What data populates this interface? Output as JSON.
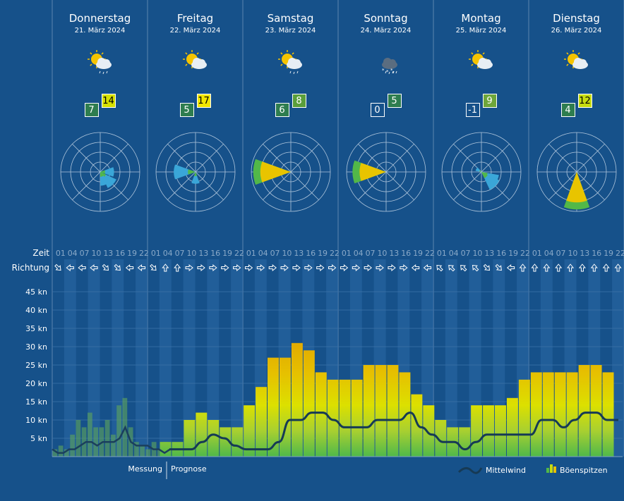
{
  "days": [
    {
      "name": "Donnerstag",
      "date": "21. März 2024",
      "tmin": "7",
      "tmax": "14",
      "icon": "sun-cloud-rain-icon",
      "tmin_color": "#2e7d4f",
      "tmax_color": "#d6e000"
    },
    {
      "name": "Freitag",
      "date": "22. März 2024",
      "tmin": "5",
      "tmax": "17",
      "icon": "sun-cloud-icon",
      "tmin_color": "#2e7d4f",
      "tmax_color": "#f2e600"
    },
    {
      "name": "Samstag",
      "date": "23. März 2024",
      "tmin": "6",
      "tmax": "8",
      "icon": "sun-cloud-rain-icon",
      "tmin_color": "#2e7d4f",
      "tmax_color": "#5a9e3a"
    },
    {
      "name": "Sonntag",
      "date": "24. März 2024",
      "tmin": "0",
      "tmax": "5",
      "icon": "snow-rain-cloud-icon",
      "tmin_color": "#16518a",
      "tmax_color": "#2e7d4f"
    },
    {
      "name": "Montag",
      "date": "25. März 2024",
      "tmin": "-1",
      "tmax": "9",
      "icon": "sun-cloud-icon",
      "tmin_color": "#16518a",
      "tmax_color": "#6ea63a"
    },
    {
      "name": "Dienstag",
      "date": "26. März 2024",
      "tmin": "4",
      "tmax": "12",
      "icon": "sun-cloud-icon",
      "tmin_color": "#2e7d4f",
      "tmax_color": "#c7dc10"
    }
  ],
  "axis": {
    "zeit_label": "Zeit",
    "richtung_label": "Richtung",
    "hours": [
      "01",
      "04",
      "07",
      "10",
      "13",
      "16",
      "19",
      "22"
    ],
    "y_ticks": [
      "5 kn",
      "10 kn",
      "15 kn",
      "20 kn",
      "25 kn",
      "30 kn",
      "35 kn",
      "40 kn",
      "45 kn"
    ]
  },
  "footer": {
    "messung": "Messung",
    "prognose": "Prognose",
    "mittelwind": "Mittelwind",
    "boeenspitzen": "Böenspitzen"
  },
  "colors": {
    "background": "#16518a",
    "line": "#163a55"
  },
  "chart_data": {
    "type": "bar",
    "ylim": [
      0,
      50
    ],
    "y_unit": "kn",
    "measured_gusts": [
      2,
      3,
      2,
      6,
      10,
      8,
      12,
      8,
      8,
      10,
      6,
      14,
      16,
      8,
      4,
      3,
      2,
      4,
      2,
      4
    ],
    "measured_mean": [
      2,
      1,
      1,
      2,
      2,
      3,
      4,
      4,
      3,
      4,
      4,
      4,
      5,
      8,
      4,
      3,
      3,
      3,
      2,
      2,
      1,
      2
    ],
    "forecast_gusts": [
      4,
      4,
      10,
      12,
      10,
      8,
      8,
      14,
      19,
      27,
      27,
      31,
      29,
      23,
      21,
      21,
      21,
      25,
      25,
      25,
      23,
      17,
      14,
      10,
      8,
      8,
      14,
      14,
      14,
      16,
      21,
      23,
      23,
      23,
      23,
      25,
      25,
      23
    ],
    "forecast_mean": [
      2,
      2,
      2,
      4,
      6,
      5,
      3,
      2,
      2,
      2,
      4,
      10,
      10,
      12,
      12,
      10,
      8,
      8,
      8,
      10,
      10,
      10,
      12,
      8,
      6,
      4,
      4,
      2,
      4,
      6,
      6,
      6,
      6,
      6,
      10,
      10,
      8,
      10,
      12,
      12,
      10,
      10
    ],
    "wind_directions": [
      [
        "SE",
        "W",
        "W",
        "W",
        "SE",
        "SE",
        "W",
        "W"
      ],
      [
        "SE",
        "N",
        "N",
        "E",
        "E",
        "E",
        "E",
        "E"
      ],
      [
        "E",
        "E",
        "E",
        "E",
        "E",
        "E",
        "E",
        "E"
      ],
      [
        "E",
        "E",
        "E",
        "E",
        "E",
        "E",
        "W",
        "W"
      ],
      [
        "NW",
        "NW",
        "NW",
        "NW",
        "SE",
        "SE",
        "W",
        "N"
      ],
      [
        "N",
        "N",
        "N",
        "N",
        "N",
        "N",
        "N",
        "N"
      ]
    ],
    "wind_rose": [
      {
        "dir_deg": [
          90,
          135,
          160
        ],
        "len": [
          0.35,
          0.45,
          0.35
        ]
      },
      {
        "dir_deg": [
          270,
          180
        ],
        "len": [
          0.55,
          0.3
        ]
      },
      {
        "dir_deg": [
          270
        ],
        "len": [
          0.95
        ]
      },
      {
        "dir_deg": [
          270
        ],
        "len": [
          0.85
        ]
      },
      {
        "dir_deg": [
          120,
          135,
          300
        ],
        "len": [
          0.45,
          0.5,
          0.15
        ]
      },
      {
        "dir_deg": [
          180
        ],
        "len": [
          0.95
        ]
      }
    ]
  }
}
